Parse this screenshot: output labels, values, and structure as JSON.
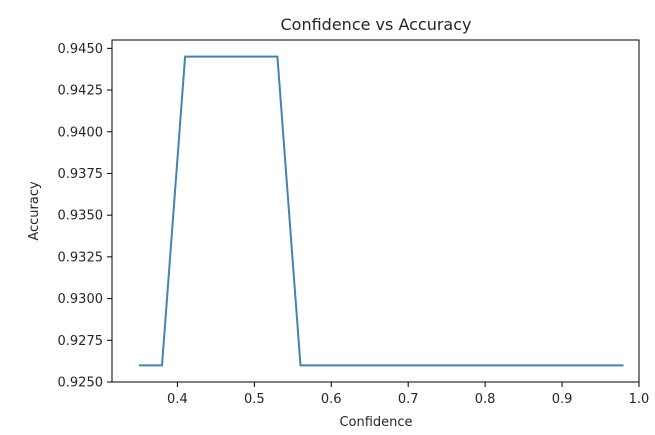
{
  "chart_data": {
    "type": "line",
    "title": "Confidence vs Accuracy",
    "xlabel": "Confidence",
    "ylabel": "Accuracy",
    "xlim": [
      0.315,
      1.0
    ],
    "ylim": [
      0.925,
      0.9455
    ],
    "grid": false,
    "xticks": [
      0.4,
      0.5,
      0.6,
      0.7,
      0.8,
      0.9,
      1.0
    ],
    "xtick_labels": [
      "0.4",
      "0.5",
      "0.6",
      "0.7",
      "0.8",
      "0.9",
      "1.0"
    ],
    "yticks": [
      0.925,
      0.9275,
      0.93,
      0.9325,
      0.935,
      0.9375,
      0.94,
      0.9425,
      0.945
    ],
    "ytick_labels": [
      "0.9250",
      "0.9275",
      "0.9300",
      "0.9325",
      "0.9350",
      "0.9375",
      "0.9400",
      "0.9425",
      "0.9450"
    ],
    "line_color": "#4682b4",
    "series": [
      {
        "x": [
          0.35,
          0.38,
          0.41,
          0.53,
          0.56,
          0.98
        ],
        "y": [
          0.926,
          0.926,
          0.9445,
          0.9445,
          0.926,
          0.926
        ]
      }
    ]
  }
}
